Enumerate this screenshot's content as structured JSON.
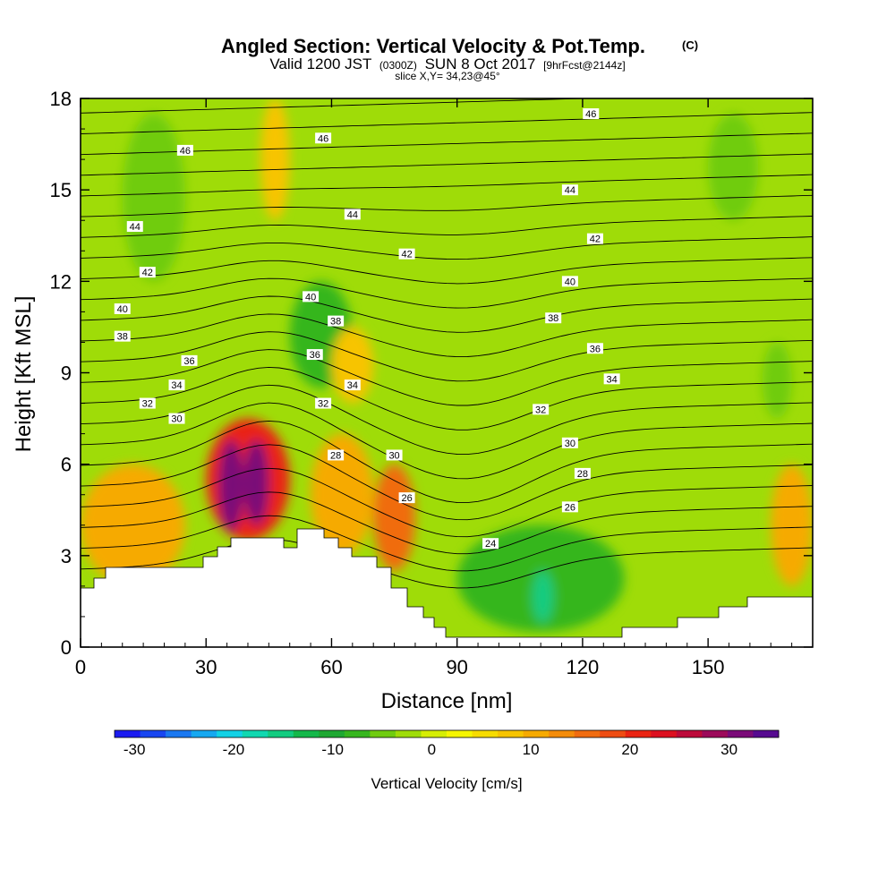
{
  "chart_data": {
    "type": "heatmap",
    "title": "Angled Section: Vertical Velocity & Pot.Temp.",
    "title_unit": "(C)",
    "subtitle_parts": [
      "Valid 1200 JST",
      "(0300Z)",
      "SUN 8 Oct 2017",
      "[9hrFcst@2144z]"
    ],
    "slice_label": "slice X,Y= 34,23@45°",
    "xlabel": "Distance [nm]",
    "ylabel": "Height [Kft MSL]",
    "xlim": [
      0,
      175
    ],
    "ylim": [
      0,
      18
    ],
    "x_ticks": [
      0,
      30,
      60,
      90,
      120,
      150
    ],
    "y_ticks": [
      0,
      3,
      6,
      9,
      12,
      15,
      18
    ],
    "colorbar": {
      "label": "Vertical Velocity [cm/s]",
      "range": [
        -32,
        35
      ],
      "ticks": [
        -30,
        -20,
        -10,
        0,
        10,
        20,
        30
      ],
      "colors": [
        "#1b1bf0",
        "#1846f0",
        "#1a78f0",
        "#16a8f0",
        "#12d2e6",
        "#10d8b0",
        "#12cc80",
        "#14b84a",
        "#1ea832",
        "#36b61e",
        "#70cc10",
        "#9fdc08",
        "#d6ee04",
        "#f6f600",
        "#f7dc00",
        "#f7c400",
        "#f6aa00",
        "#f48c0a",
        "#f06c10",
        "#ee4c12",
        "#ea2412",
        "#dc1020",
        "#bc0a3a",
        "#9c0a5a",
        "#7a0a78",
        "#560a90"
      ]
    },
    "velocity_cells": [
      {
        "x": [
          0,
          25
        ],
        "z": [
          2.0,
          6.0
        ],
        "w": 10
      },
      {
        "x": [
          30,
          50
        ],
        "z": [
          3.5,
          7.5
        ],
        "w": 20
      },
      {
        "x": [
          33,
          39
        ],
        "z": [
          3.8,
          6.8
        ],
        "w": 32
      },
      {
        "x": [
          39,
          45
        ],
        "z": [
          4.0,
          6.8
        ],
        "w": 32
      },
      {
        "x": [
          55,
          70
        ],
        "z": [
          3.0,
          7.0
        ],
        "w": 10
      },
      {
        "x": [
          70,
          80
        ],
        "z": [
          2.5,
          6.0
        ],
        "w": 15
      },
      {
        "x": [
          90,
          130
        ],
        "z": [
          0.5,
          4.0
        ],
        "w": -8
      },
      {
        "x": [
          108,
          113
        ],
        "z": [
          0.8,
          2.5
        ],
        "w": -15
      },
      {
        "x": [
          165,
          175
        ],
        "z": [
          2.0,
          6.0
        ],
        "w": 10
      },
      {
        "x": [
          10,
          25
        ],
        "z": [
          12.0,
          17.5
        ],
        "w": -6
      },
      {
        "x": [
          43,
          50
        ],
        "z": [
          14.0,
          18.0
        ],
        "w": 8
      },
      {
        "x": [
          50,
          65
        ],
        "z": [
          8.5,
          12.0
        ],
        "w": -8
      },
      {
        "x": [
          60,
          70
        ],
        "z": [
          8.0,
          10.5
        ],
        "w": 8
      },
      {
        "x": [
          150,
          162
        ],
        "z": [
          14.0,
          17.5
        ],
        "w": -6
      },
      {
        "x": [
          163,
          170
        ],
        "z": [
          7.5,
          10.0
        ],
        "w": -5
      }
    ],
    "theta_contour_labels": [
      {
        "x": 25,
        "z": 16.3,
        "text": "46"
      },
      {
        "x": 58,
        "z": 16.7,
        "text": "46"
      },
      {
        "x": 122,
        "z": 17.5,
        "text": "46"
      },
      {
        "x": 13,
        "z": 13.8,
        "text": "44"
      },
      {
        "x": 65,
        "z": 14.2,
        "text": "44"
      },
      {
        "x": 117,
        "z": 15.0,
        "text": "44"
      },
      {
        "x": 16,
        "z": 12.3,
        "text": "42"
      },
      {
        "x": 78,
        "z": 12.9,
        "text": "42"
      },
      {
        "x": 123,
        "z": 13.4,
        "text": "42"
      },
      {
        "x": 10,
        "z": 11.1,
        "text": "40"
      },
      {
        "x": 55,
        "z": 11.5,
        "text": "40"
      },
      {
        "x": 117,
        "z": 12.0,
        "text": "40"
      },
      {
        "x": 10,
        "z": 10.2,
        "text": "38"
      },
      {
        "x": 61,
        "z": 10.7,
        "text": "38"
      },
      {
        "x": 113,
        "z": 10.8,
        "text": "38"
      },
      {
        "x": 26,
        "z": 9.4,
        "text": "36"
      },
      {
        "x": 56,
        "z": 9.6,
        "text": "36"
      },
      {
        "x": 123,
        "z": 9.8,
        "text": "36"
      },
      {
        "x": 23,
        "z": 8.6,
        "text": "34"
      },
      {
        "x": 65,
        "z": 8.6,
        "text": "34"
      },
      {
        "x": 127,
        "z": 8.8,
        "text": "34"
      },
      {
        "x": 16,
        "z": 8.0,
        "text": "32"
      },
      {
        "x": 58,
        "z": 8.0,
        "text": "32"
      },
      {
        "x": 110,
        "z": 7.8,
        "text": "32"
      },
      {
        "x": 23,
        "z": 7.5,
        "text": "30"
      },
      {
        "x": 75,
        "z": 6.3,
        "text": "30"
      },
      {
        "x": 117,
        "z": 6.7,
        "text": "30"
      },
      {
        "x": 61,
        "z": 6.3,
        "text": "28"
      },
      {
        "x": 120,
        "z": 5.7,
        "text": "28"
      },
      {
        "x": 78,
        "z": 4.9,
        "text": "26"
      },
      {
        "x": 117,
        "z": 4.6,
        "text": "26"
      },
      {
        "x": 98,
        "z": 3.4,
        "text": "24"
      }
    ]
  }
}
